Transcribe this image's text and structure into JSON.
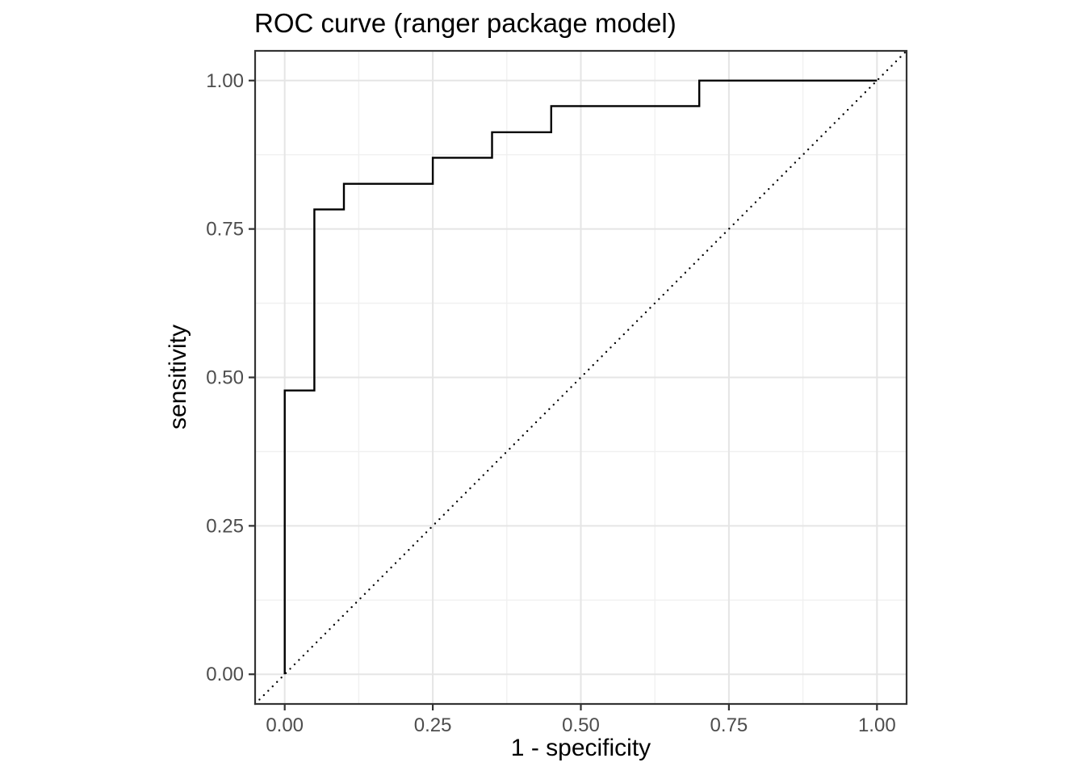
{
  "chart_data": {
    "type": "line",
    "title": "ROC curve (ranger package model)",
    "xlabel": "1 - specificity",
    "ylabel": "sensitivity",
    "xlim": [
      -0.05,
      1.05
    ],
    "ylim": [
      -0.05,
      1.05
    ],
    "x_ticks": {
      "values": [
        0,
        0.25,
        0.5,
        0.75,
        1
      ],
      "labels": [
        "0.00",
        "0.25",
        "0.50",
        "0.75",
        "1.00"
      ]
    },
    "y_ticks": {
      "values": [
        0,
        0.25,
        0.5,
        0.75,
        1
      ],
      "labels": [
        "0.00",
        "0.25",
        "0.50",
        "0.75",
        "1.00"
      ]
    },
    "minor_gridlines": {
      "x": [
        0.125,
        0.375,
        0.625,
        0.875
      ],
      "y": [
        0.125,
        0.375,
        0.625,
        0.875
      ]
    },
    "grid": "major and minor gridlines, light gray on white panel",
    "legend": "none",
    "series": [
      {
        "name": "chance-diagonal",
        "type": "line",
        "linetype": "dotted",
        "color": "#000000",
        "points": [
          [
            -0.05,
            -0.05
          ],
          [
            1.05,
            1.05
          ]
        ]
      },
      {
        "name": "roc-curve",
        "type": "step",
        "linetype": "solid",
        "color": "#000000",
        "points": [
          [
            0.0,
            0.0
          ],
          [
            0.0,
            0.478
          ],
          [
            0.05,
            0.478
          ],
          [
            0.05,
            0.783
          ],
          [
            0.1,
            0.783
          ],
          [
            0.1,
            0.826
          ],
          [
            0.25,
            0.826
          ],
          [
            0.25,
            0.87
          ],
          [
            0.35,
            0.87
          ],
          [
            0.35,
            0.913
          ],
          [
            0.45,
            0.913
          ],
          [
            0.45,
            0.957
          ],
          [
            0.7,
            0.957
          ],
          [
            0.7,
            1.0
          ],
          [
            1.0,
            1.0
          ]
        ]
      }
    ],
    "colors": {
      "background": "#ffffff",
      "panel_background": "#ffffff",
      "panel_border": "#333333",
      "grid_major": "#e5e5e5",
      "grid_minor": "#f0f0f0",
      "tick_mark": "#333333",
      "tick_label": "#4d4d4d",
      "title_text": "#000000",
      "axis_title_text": "#000000",
      "curve": "#000000"
    }
  }
}
